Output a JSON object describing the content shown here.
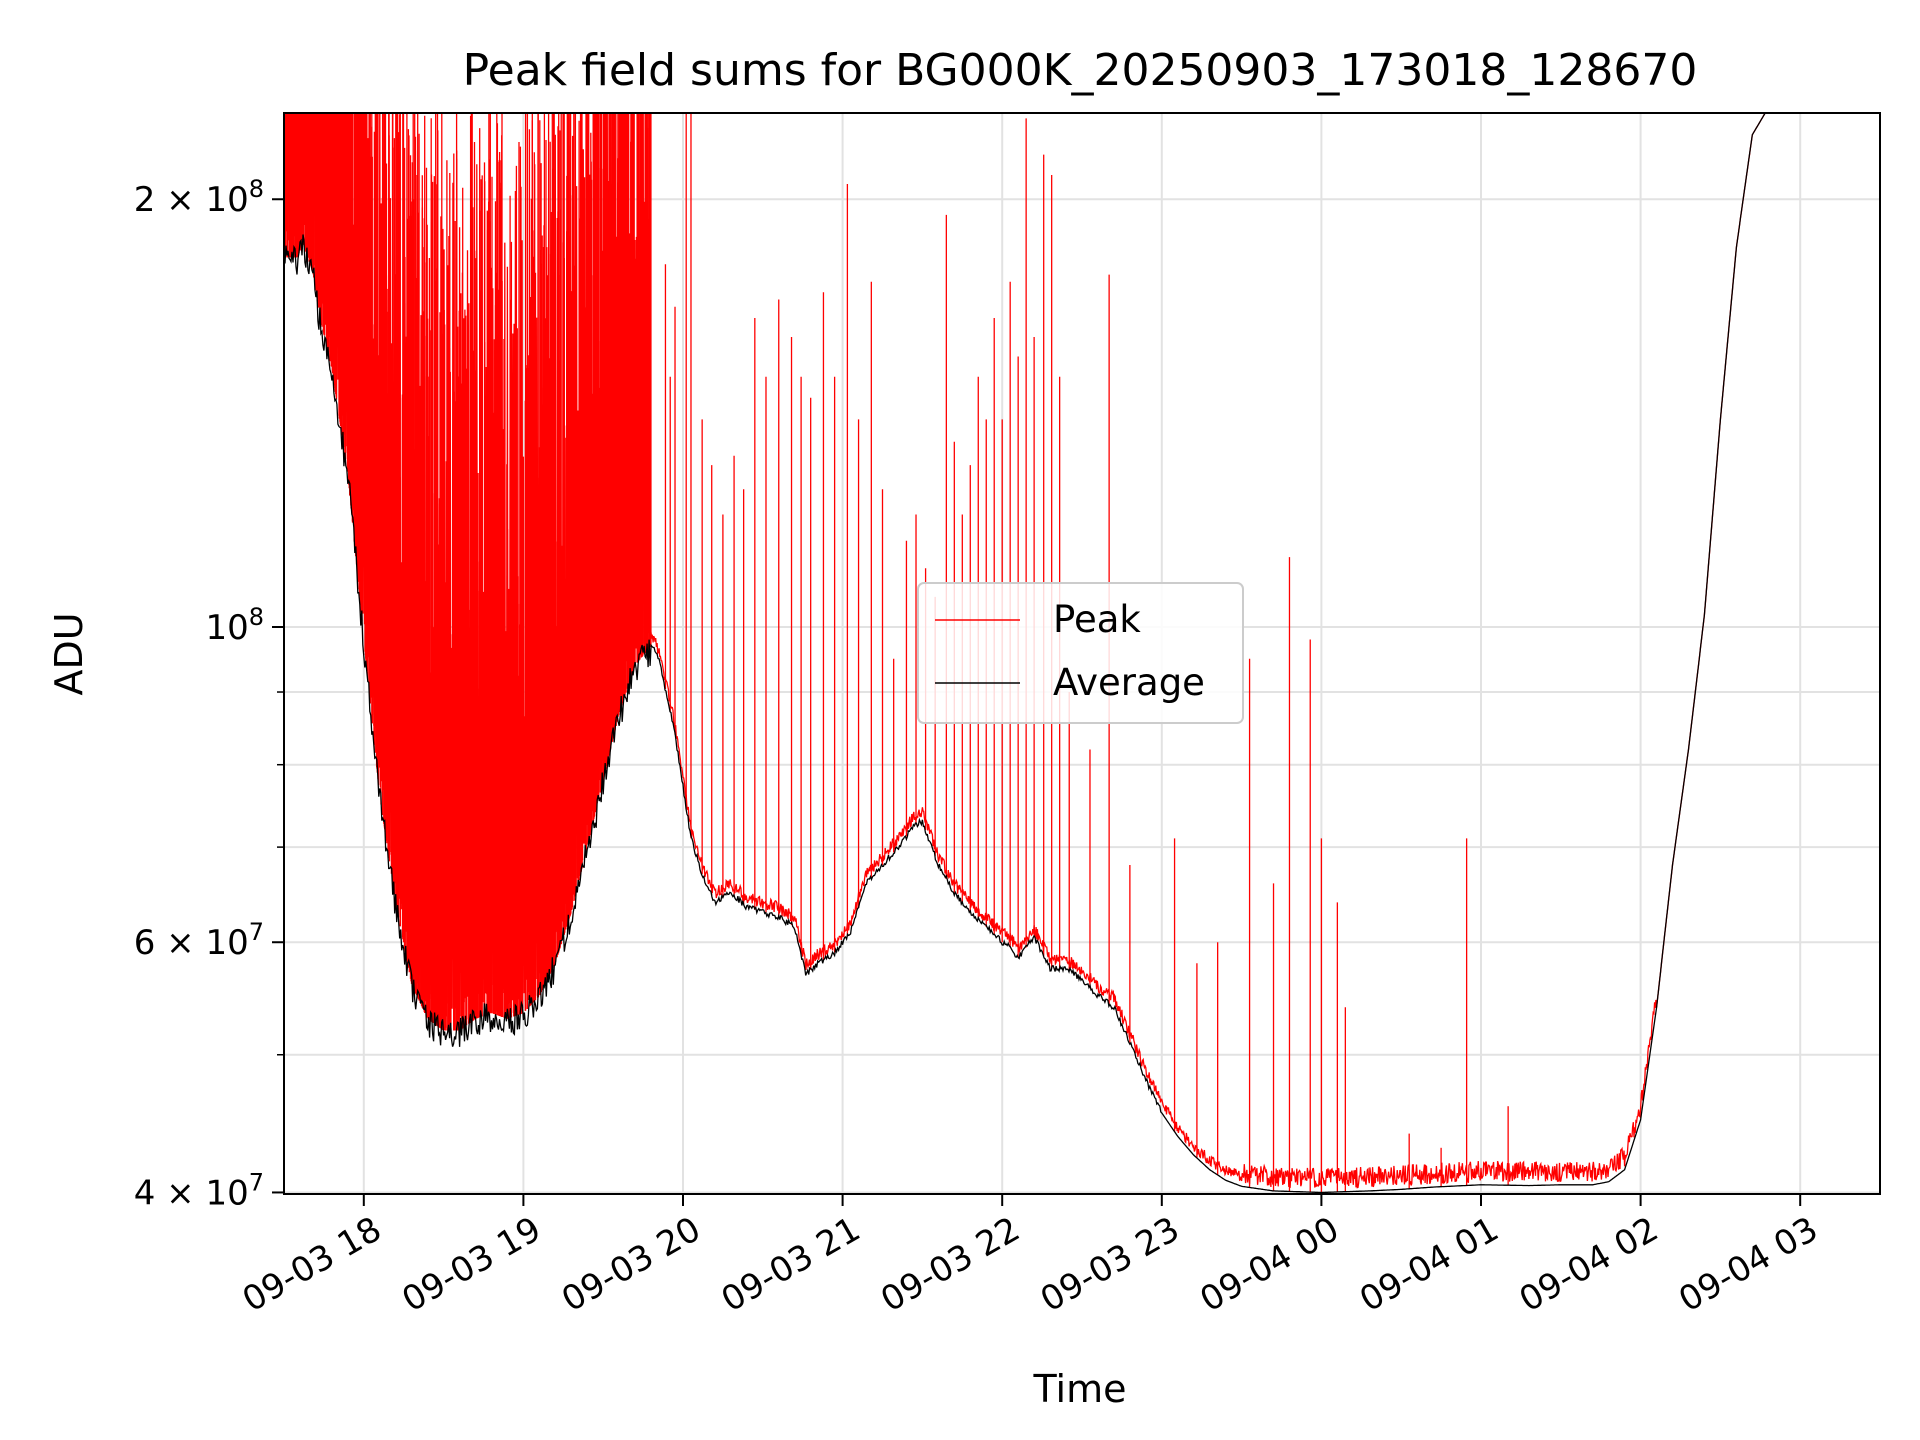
{
  "chart_data": {
    "type": "line",
    "title": "Peak field sums for BG000K_20250903_173018_128670",
    "xlabel": "Time",
    "ylabel": "ADU",
    "yscale": "log",
    "ylim": [
      39900000,
      230000000
    ],
    "grid": true,
    "legend_position": "center",
    "x_start": "09-03 17:30",
    "x_end": "09-04 03:30",
    "x_ticks": [
      {
        "hour": 0.5,
        "label": "09-03 18"
      },
      {
        "hour": 1.5,
        "label": "09-03 19"
      },
      {
        "hour": 2.5,
        "label": "09-03 20"
      },
      {
        "hour": 3.5,
        "label": "09-03 21"
      },
      {
        "hour": 4.5,
        "label": "09-03 22"
      },
      {
        "hour": 5.5,
        "label": "09-03 23"
      },
      {
        "hour": 6.5,
        "label": "09-04 00"
      },
      {
        "hour": 7.5,
        "label": "09-04 01"
      },
      {
        "hour": 8.5,
        "label": "09-04 02"
      },
      {
        "hour": 9.5,
        "label": "09-04 03"
      }
    ],
    "y_ticks": [
      {
        "value": 40000000,
        "base": "4 × 10",
        "exp": "7"
      },
      {
        "value": 60000000,
        "base": "6 × 10",
        "exp": "7"
      },
      {
        "value": 100000000,
        "base": "10",
        "exp": "8"
      },
      {
        "value": 200000000,
        "base": "2 × 10",
        "exp": "8"
      }
    ],
    "y_minor_ticks": [
      50000000,
      70000000,
      80000000,
      90000000
    ],
    "series": [
      {
        "name": "Peak",
        "color": "#ff0000",
        "dense_noise_region": [
          0.0,
          2.3
        ],
        "baseline_offset_hours_until": 8.6,
        "spikes": [
          {
            "t": 2.52,
            "v": 240000000
          },
          {
            "t": 2.55,
            "v": 240000000
          },
          {
            "t": 2.42,
            "v": 150000000
          },
          {
            "t": 2.39,
            "v": 180000000
          },
          {
            "t": 2.45,
            "v": 168000000
          },
          {
            "t": 2.62,
            "v": 140000000
          },
          {
            "t": 2.68,
            "v": 130000000
          },
          {
            "t": 2.75,
            "v": 120000000
          },
          {
            "t": 2.82,
            "v": 132000000
          },
          {
            "t": 2.88,
            "v": 125000000
          },
          {
            "t": 2.95,
            "v": 165000000
          },
          {
            "t": 3.02,
            "v": 150000000
          },
          {
            "t": 3.1,
            "v": 170000000
          },
          {
            "t": 3.18,
            "v": 160000000
          },
          {
            "t": 3.24,
            "v": 150000000
          },
          {
            "t": 3.3,
            "v": 145000000
          },
          {
            "t": 3.38,
            "v": 172000000
          },
          {
            "t": 3.45,
            "v": 150000000
          },
          {
            "t": 3.53,
            "v": 205000000
          },
          {
            "t": 3.6,
            "v": 140000000
          },
          {
            "t": 3.68,
            "v": 175000000
          },
          {
            "t": 3.75,
            "v": 125000000
          },
          {
            "t": 3.82,
            "v": 95000000
          },
          {
            "t": 3.9,
            "v": 115000000
          },
          {
            "t": 3.96,
            "v": 120000000
          },
          {
            "t": 4.02,
            "v": 110000000
          },
          {
            "t": 4.08,
            "v": 105000000
          },
          {
            "t": 4.15,
            "v": 195000000
          },
          {
            "t": 4.2,
            "v": 135000000
          },
          {
            "t": 4.25,
            "v": 120000000
          },
          {
            "t": 4.3,
            "v": 130000000
          },
          {
            "t": 4.35,
            "v": 150000000
          },
          {
            "t": 4.4,
            "v": 140000000
          },
          {
            "t": 4.45,
            "v": 165000000
          },
          {
            "t": 4.5,
            "v": 140000000
          },
          {
            "t": 4.55,
            "v": 175000000
          },
          {
            "t": 4.6,
            "v": 155000000
          },
          {
            "t": 4.65,
            "v": 228000000
          },
          {
            "t": 4.7,
            "v": 160000000
          },
          {
            "t": 4.76,
            "v": 215000000
          },
          {
            "t": 4.81,
            "v": 208000000
          },
          {
            "t": 4.86,
            "v": 150000000
          },
          {
            "t": 4.92,
            "v": 90000000
          },
          {
            "t": 5.05,
            "v": 82000000
          },
          {
            "t": 5.17,
            "v": 177000000
          },
          {
            "t": 5.3,
            "v": 68000000
          },
          {
            "t": 5.58,
            "v": 71000000
          },
          {
            "t": 5.72,
            "v": 58000000
          },
          {
            "t": 5.85,
            "v": 60000000
          },
          {
            "t": 6.05,
            "v": 95000000
          },
          {
            "t": 6.2,
            "v": 66000000
          },
          {
            "t": 6.3,
            "v": 112000000
          },
          {
            "t": 6.43,
            "v": 98000000
          },
          {
            "t": 6.5,
            "v": 71000000
          },
          {
            "t": 6.6,
            "v": 64000000
          },
          {
            "t": 6.65,
            "v": 54000000
          },
          {
            "t": 7.05,
            "v": 44000000
          },
          {
            "t": 7.25,
            "v": 43000000
          },
          {
            "t": 7.41,
            "v": 71000000
          },
          {
            "t": 7.67,
            "v": 46000000
          }
        ]
      },
      {
        "name": "Average",
        "color": "#000000",
        "points": [
          [
            0.0,
            182000000
          ],
          [
            0.08,
            182000000
          ],
          [
            0.12,
            186000000
          ],
          [
            0.18,
            178000000
          ],
          [
            0.22,
            166000000
          ],
          [
            0.3,
            152000000
          ],
          [
            0.4,
            128000000
          ],
          [
            0.5,
            98000000
          ],
          [
            0.6,
            76000000
          ],
          [
            0.7,
            64000000
          ],
          [
            0.8,
            56000000
          ],
          [
            0.9,
            53000000
          ],
          [
            1.0,
            52000000
          ],
          [
            1.1,
            52000000
          ],
          [
            1.2,
            53000000
          ],
          [
            1.3,
            53500000
          ],
          [
            1.4,
            53000000
          ],
          [
            1.5,
            53500000
          ],
          [
            1.6,
            55000000
          ],
          [
            1.7,
            58000000
          ],
          [
            1.8,
            63000000
          ],
          [
            1.9,
            70000000
          ],
          [
            2.0,
            78000000
          ],
          [
            2.1,
            87000000
          ],
          [
            2.2,
            94000000
          ],
          [
            2.3,
            97000000
          ],
          [
            2.35,
            95000000
          ],
          [
            2.45,
            84000000
          ],
          [
            2.55,
            71000000
          ],
          [
            2.62,
            67000000
          ],
          [
            2.7,
            64000000
          ],
          [
            2.8,
            65000000
          ],
          [
            2.9,
            63500000
          ],
          [
            3.0,
            63000000
          ],
          [
            3.1,
            62500000
          ],
          [
            3.2,
            61500000
          ],
          [
            3.27,
            57000000
          ],
          [
            3.35,
            58000000
          ],
          [
            3.45,
            59000000
          ],
          [
            3.55,
            61000000
          ],
          [
            3.65,
            66000000
          ],
          [
            3.75,
            68000000
          ],
          [
            3.85,
            70000000
          ],
          [
            3.95,
            72500000
          ],
          [
            4.0,
            73000000
          ],
          [
            4.1,
            68000000
          ],
          [
            4.2,
            65000000
          ],
          [
            4.3,
            63000000
          ],
          [
            4.4,
            61500000
          ],
          [
            4.5,
            60000000
          ],
          [
            4.55,
            59500000
          ],
          [
            4.6,
            58500000
          ],
          [
            4.7,
            60500000
          ],
          [
            4.8,
            57500000
          ],
          [
            4.9,
            57500000
          ],
          [
            5.0,
            56500000
          ],
          [
            5.1,
            55000000
          ],
          [
            5.2,
            54000000
          ],
          [
            5.3,
            51000000
          ],
          [
            5.4,
            48000000
          ],
          [
            5.5,
            45500000
          ],
          [
            5.6,
            43800000
          ],
          [
            5.7,
            42500000
          ],
          [
            5.8,
            41500000
          ],
          [
            5.9,
            40800000
          ],
          [
            6.0,
            40400000
          ],
          [
            6.2,
            40100000
          ],
          [
            6.5,
            40000000
          ],
          [
            6.8,
            40100000
          ],
          [
            7.0,
            40200000
          ],
          [
            7.2,
            40350000
          ],
          [
            7.5,
            40500000
          ],
          [
            7.8,
            40450000
          ],
          [
            8.0,
            40500000
          ],
          [
            8.2,
            40500000
          ],
          [
            8.3,
            40700000
          ],
          [
            8.4,
            41500000
          ],
          [
            8.5,
            45000000
          ],
          [
            8.6,
            54000000
          ],
          [
            8.7,
            68000000
          ],
          [
            8.8,
            82000000
          ],
          [
            8.9,
            102000000
          ],
          [
            9.0,
            140000000
          ],
          [
            9.1,
            185000000
          ],
          [
            9.2,
            222000000
          ],
          [
            9.3,
            232000000
          ],
          [
            9.5,
            232000000
          ]
        ]
      }
    ]
  }
}
